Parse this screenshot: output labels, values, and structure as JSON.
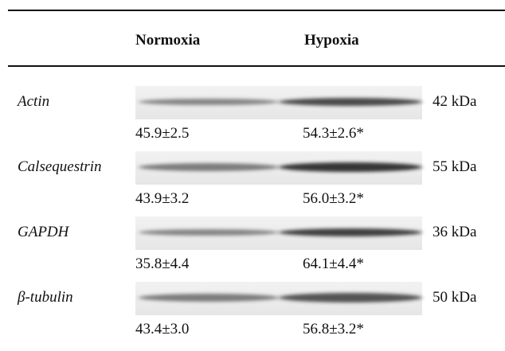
{
  "table": {
    "header": [
      "Normoxia",
      "Hypoxia"
    ],
    "rows": [
      {
        "protein": "Actin",
        "normoxia": "45.9±2.5",
        "hypoxia": "54.3±2.6*",
        "size": "42 kDa"
      },
      {
        "protein": "Calsequestrin",
        "normoxia": "43.9±3.2",
        "hypoxia": "56.0±3.2*",
        "size": "55 kDa"
      },
      {
        "protein": "GAPDH",
        "normoxia": "35.8±4.4",
        "hypoxia": "64.1±4.4*",
        "size": "36 kDa"
      },
      {
        "protein": "β-tubulin",
        "normoxia": "43.4±3.0",
        "hypoxia": "56.8±3.2*",
        "size": "50 kDa"
      }
    ]
  }
}
